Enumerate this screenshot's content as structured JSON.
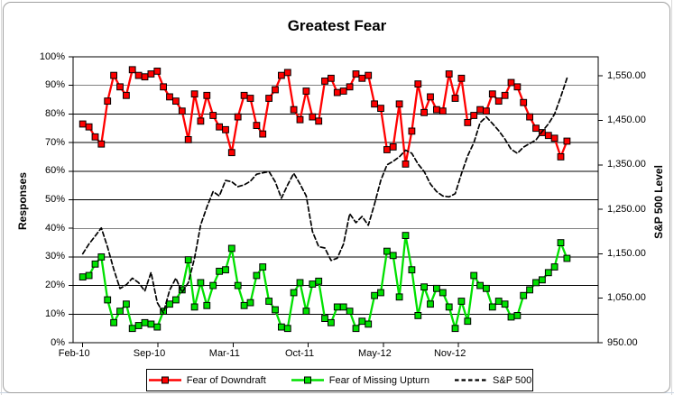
{
  "chart": {
    "title": "Greatest Fear",
    "left_axis": {
      "title": "Responses",
      "tick_labels": [
        "0%",
        "10%",
        "20%",
        "30%",
        "40%",
        "50%",
        "60%",
        "70%",
        "80%",
        "90%",
        "100%"
      ],
      "min": 0,
      "max": 100,
      "step": 10
    },
    "right_axis": {
      "title": "S&P 500 Level",
      "tick_labels": [
        "950.00",
        "1,050.00",
        "1,150.00",
        "1,250.00",
        "1,350.00",
        "1,450.00",
        "1,550.00"
      ],
      "min": 950,
      "max": 1593,
      "step": 100
    },
    "x_axis": {
      "tick_labels": [
        "Feb-10",
        "Sep-10",
        "Mar-11",
        "Oct-11",
        "May-12",
        "Nov-12"
      ]
    },
    "colors": {
      "downdraft": "#FF0000",
      "upturn": "#00E100",
      "sp500": "#000000",
      "gridline": "#000000"
    }
  },
  "chart_data": {
    "type": "line",
    "title": "Greatest Fear",
    "xlabel_ticks": [
      "Feb-10",
      "Sep-10",
      "Mar-11",
      "Oct-11",
      "May-12",
      "Nov-12"
    ],
    "left_ylabel": "Responses",
    "right_ylabel": "S&P 500 Level",
    "left_ylim": [
      0,
      100
    ],
    "right_ylim": [
      950,
      1593
    ],
    "grid": true,
    "legend_position": "bottom",
    "series": [
      {
        "name": "Fear of Downdraft",
        "axis": "left",
        "units": "%",
        "color": "#FF0000",
        "marker": "square",
        "line_style": "solid",
        "values": [
          76.5,
          75.5,
          72,
          69.5,
          84.5,
          93.5,
          89.5,
          86.5,
          95.5,
          93.5,
          93,
          94,
          95,
          89.5,
          86,
          84.5,
          81,
          71,
          87,
          77.5,
          86.5,
          79.5,
          75.5,
          74.5,
          66.5,
          79,
          86.5,
          85.5,
          76,
          73,
          85.5,
          88.5,
          93.5,
          94.5,
          81.5,
          78,
          88,
          79,
          77.5,
          91.5,
          92.5,
          87.5,
          88,
          89.5,
          94,
          92.5,
          93.5,
          83.5,
          82,
          67.5,
          68.5,
          83.5,
          62.5,
          74,
          90.5,
          80.5,
          86,
          81.5,
          81,
          94,
          85.5,
          92.5,
          77,
          79.5,
          81.5,
          81,
          87,
          84.5,
          86.5,
          91,
          89.5,
          84,
          79,
          75,
          73.5,
          72.5,
          71.5,
          65,
          70.5
        ]
      },
      {
        "name": "Fear of Missing Upturn",
        "axis": "left",
        "units": "%",
        "color": "#00E100",
        "marker": "square",
        "line_style": "solid",
        "values": [
          23,
          23.5,
          27.5,
          30,
          15,
          7,
          11,
          13.5,
          5,
          6,
          7,
          6.5,
          5.5,
          11,
          13.5,
          15,
          18.5,
          29,
          12.5,
          21,
          13,
          20,
          25,
          25.5,
          33,
          20,
          13,
          14,
          23.5,
          26.5,
          14.5,
          11.5,
          5.5,
          5,
          17.5,
          21,
          11,
          20.5,
          21.5,
          8.5,
          7,
          12.5,
          12.5,
          11,
          5,
          7.5,
          6.5,
          16.5,
          17.5,
          32,
          30.5,
          16,
          37.5,
          25.5,
          9.5,
          19.5,
          13.5,
          19,
          17.5,
          12.5,
          5,
          14.5,
          7.5,
          23.5,
          20,
          19,
          12.5,
          14.5,
          13.5,
          9,
          9.5,
          16.5,
          18.5,
          21,
          22,
          24.5,
          26.5,
          35,
          29.5
        ]
      },
      {
        "name": "S&P 500",
        "axis": "right",
        "units": "index",
        "color": "#000000",
        "marker": "none",
        "line_style": "dashed",
        "values": [
          1150,
          1172,
          1190,
          1208,
          1165,
          1115,
          1072,
          1080,
          1095,
          1085,
          1066,
          1108,
          1040,
          1017,
          1068,
          1095,
          1063,
          1085,
          1140,
          1215,
          1255,
          1290,
          1280,
          1315,
          1312,
          1301,
          1305,
          1313,
          1329,
          1332,
          1335,
          1312,
          1275,
          1305,
          1331,
          1307,
          1280,
          1200,
          1166,
          1163,
          1135,
          1140,
          1172,
          1240,
          1220,
          1234,
          1214,
          1262,
          1315,
          1350,
          1358,
          1368,
          1383,
          1376,
          1352,
          1335,
          1307,
          1290,
          1280,
          1278,
          1285,
          1330,
          1370,
          1400,
          1445,
          1458,
          1443,
          1427,
          1408,
          1385,
          1376,
          1390,
          1398,
          1406,
          1425,
          1442,
          1464,
          1503,
          1545
        ]
      }
    ]
  }
}
